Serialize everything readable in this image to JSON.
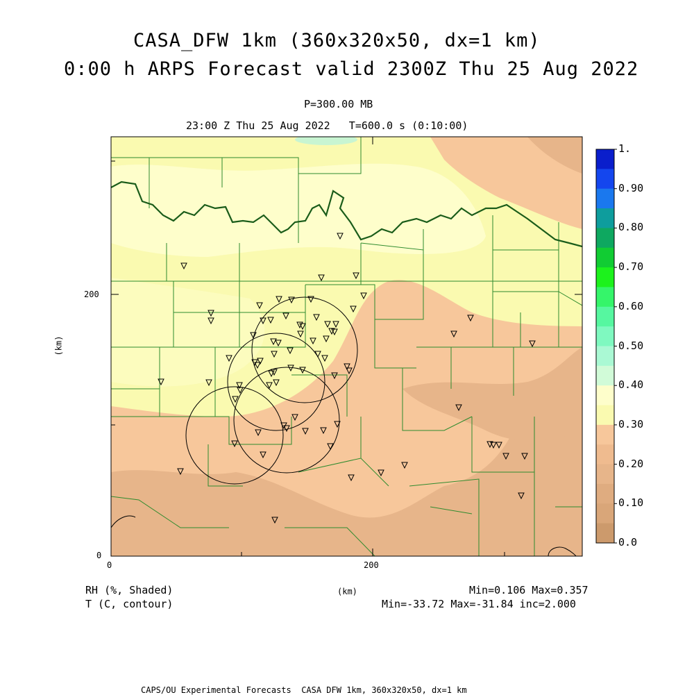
{
  "header": {
    "title_line1": "CASA_DFW 1km (360x320x50, dx=1 km)",
    "title_line2": "0:00 h ARPS Forecast valid 2300Z Thu 25 Aug 2022",
    "pressure": "P=300.00 MB",
    "time_line": "23:00 Z Thu 25 Aug 2022   T=600.0 s (0:10:00)"
  },
  "map": {
    "x_axis_label": "(km)",
    "y_axis_label": "(km)",
    "x_ticks": [
      "0",
      "200"
    ],
    "y_ticks": [
      "0",
      "200"
    ],
    "colors": {
      "rh_0_10": "#d9a679",
      "rh_10_20": "#e7b58a",
      "rh_20_30": "#f7c79b",
      "rh_30_35": "#fafab0",
      "rh_30_light": "#fefecb",
      "rh_040": "#c8f5d2",
      "county": "#2e8b2e",
      "river": "#1a5c1a"
    }
  },
  "colorbar": {
    "labels": [
      "1.",
      "0.90",
      "0.80",
      "0.70",
      "0.60",
      "0.50",
      "0.40",
      "0.30",
      "0.20",
      "0.10",
      "0.0"
    ],
    "colors": [
      "#0a1ecc",
      "#1446ee",
      "#1a78ee",
      "#0e9d9d",
      "#0ea860",
      "#11cc33",
      "#1cf21c",
      "#35f56a",
      "#56f7a0",
      "#7ff9c0",
      "#aaf9d4",
      "#d1fbd8",
      "#fefecb",
      "#fafab0",
      "#f7c79b",
      "#efbb8f",
      "#e7b58a",
      "#dfac80",
      "#d9a679",
      "#cc9a6c"
    ]
  },
  "footer": {
    "rh_label": "RH (%, Shaded)",
    "t_label": "T (C, contour)",
    "km_label": "(km)",
    "rh_minmax": "Min=0.106 Max=0.357",
    "t_minmax": "Min=-33.72 Max=-31.84 inc=2.000",
    "credit": "CAPS/OU Experimental Forecasts  CASA DFW 1km, 360x320x50, dx=1 km"
  }
}
